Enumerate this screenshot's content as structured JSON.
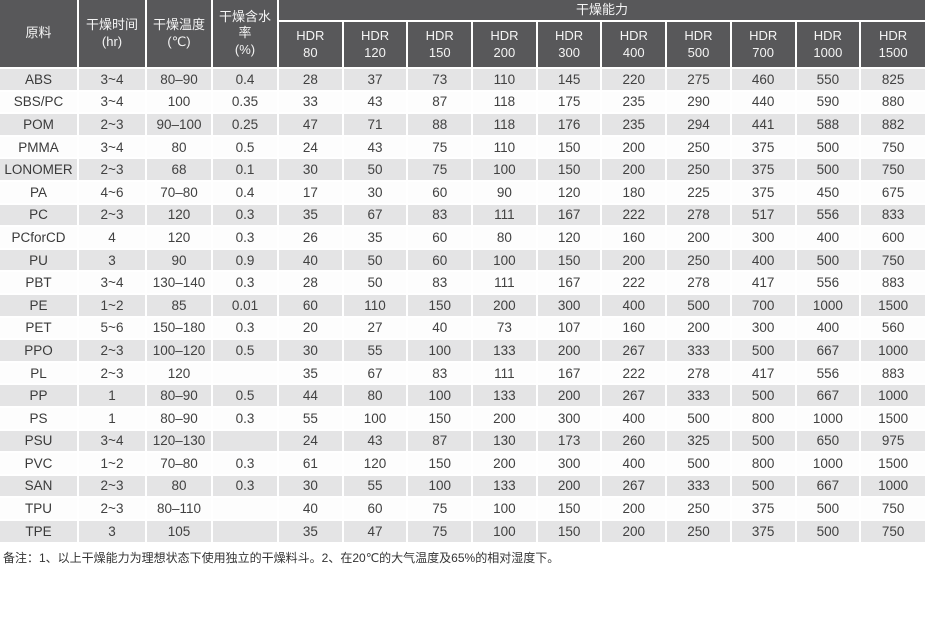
{
  "colors": {
    "header_bg": "#58585a",
    "header_text": "#f4f4f4",
    "material_column_bg": "#c4c4c5",
    "row_odd_bg": "#e4e4e5",
    "row_even_bg": "#fdfdfd",
    "cell_text": "#414141",
    "grid_gap": "#ffffff"
  },
  "table": {
    "headers": {
      "material": "原料",
      "time": "干燥时间\n(hr)",
      "temp": "干燥温度\n(℃)",
      "moisture": "干燥含水率\n(%)",
      "capacity_group": "干燥能力"
    },
    "hdr_columns": [
      "HDR\n80",
      "HDR\n120",
      "HDR\n150",
      "HDR\n200",
      "HDR\n300",
      "HDR\n400",
      "HDR\n500",
      "HDR\n700",
      "HDR\n1000",
      "HDR\n1500"
    ],
    "rows": [
      {
        "material": "ABS",
        "time": "3~4",
        "temp": "80–90",
        "moisture": "0.4",
        "capacities": [
          28,
          37,
          73,
          110,
          145,
          220,
          275,
          460,
          550,
          825
        ]
      },
      {
        "material": "SBS/PC",
        "time": "3~4",
        "temp": "100",
        "moisture": "0.35",
        "capacities": [
          33,
          43,
          87,
          118,
          175,
          235,
          290,
          440,
          590,
          880
        ]
      },
      {
        "material": "POM",
        "time": "2~3",
        "temp": "90–100",
        "moisture": "0.25",
        "capacities": [
          47,
          71,
          88,
          118,
          176,
          235,
          294,
          441,
          588,
          882
        ]
      },
      {
        "material": "PMMA",
        "time": "3~4",
        "temp": "80",
        "moisture": "0.5",
        "capacities": [
          24,
          43,
          75,
          110,
          150,
          200,
          250,
          375,
          500,
          750
        ]
      },
      {
        "material": "LONOMER",
        "time": "2~3",
        "temp": "68",
        "moisture": "0.1",
        "capacities": [
          30,
          50,
          75,
          100,
          150,
          200,
          250,
          375,
          500,
          750
        ]
      },
      {
        "material": "PA",
        "time": "4~6",
        "temp": "70–80",
        "moisture": "0.4",
        "capacities": [
          17,
          30,
          60,
          90,
          120,
          180,
          225,
          375,
          450,
          675
        ]
      },
      {
        "material": "PC",
        "time": "2~3",
        "temp": "120",
        "moisture": "0.3",
        "capacities": [
          35,
          67,
          83,
          111,
          167,
          222,
          278,
          517,
          556,
          833
        ]
      },
      {
        "material": "PCforCD",
        "time": "4",
        "temp": "120",
        "moisture": "0.3",
        "capacities": [
          26,
          35,
          60,
          80,
          120,
          160,
          200,
          300,
          400,
          600
        ]
      },
      {
        "material": "PU",
        "time": "3",
        "temp": "90",
        "moisture": "0.9",
        "capacities": [
          40,
          50,
          60,
          100,
          150,
          200,
          250,
          400,
          500,
          750
        ]
      },
      {
        "material": "PBT",
        "time": "3~4",
        "temp": "130–140",
        "moisture": "0.3",
        "capacities": [
          28,
          50,
          83,
          111,
          167,
          222,
          278,
          417,
          556,
          883
        ]
      },
      {
        "material": "PE",
        "time": "1~2",
        "temp": "85",
        "moisture": "0.01",
        "capacities": [
          60,
          110,
          150,
          200,
          300,
          400,
          500,
          700,
          1000,
          1500
        ]
      },
      {
        "material": "PET",
        "time": "5~6",
        "temp": "150–180",
        "moisture": "0.3",
        "capacities": [
          20,
          27,
          40,
          73,
          107,
          160,
          200,
          300,
          400,
          560
        ]
      },
      {
        "material": "PPO",
        "time": "2~3",
        "temp": "100–120",
        "moisture": "0.5",
        "capacities": [
          30,
          55,
          100,
          133,
          200,
          267,
          333,
          500,
          667,
          1000
        ]
      },
      {
        "material": "PL",
        "time": "2~3",
        "temp": "120",
        "moisture": "",
        "capacities": [
          35,
          67,
          83,
          111,
          167,
          222,
          278,
          417,
          556,
          883
        ]
      },
      {
        "material": "PP",
        "time": "1",
        "temp": "80–90",
        "moisture": "0.5",
        "capacities": [
          44,
          80,
          100,
          133,
          200,
          267,
          333,
          500,
          667,
          1000
        ]
      },
      {
        "material": "PS",
        "time": "1",
        "temp": "80–90",
        "moisture": "0.3",
        "capacities": [
          55,
          100,
          150,
          200,
          300,
          400,
          500,
          800,
          1000,
          1500
        ]
      },
      {
        "material": "PSU",
        "time": "3~4",
        "temp": "120–130",
        "moisture": "",
        "capacities": [
          24,
          43,
          87,
          130,
          173,
          260,
          325,
          500,
          650,
          975
        ]
      },
      {
        "material": "PVC",
        "time": "1~2",
        "temp": "70–80",
        "moisture": "0.3",
        "capacities": [
          61,
          120,
          150,
          200,
          300,
          400,
          500,
          800,
          1000,
          1500
        ]
      },
      {
        "material": "SAN",
        "time": "2~3",
        "temp": "80",
        "moisture": "0.3",
        "capacities": [
          30,
          55,
          100,
          133,
          200,
          267,
          333,
          500,
          667,
          1000
        ]
      },
      {
        "material": "TPU",
        "time": "2~3",
        "temp": "80–110",
        "moisture": "",
        "capacities": [
          40,
          60,
          75,
          100,
          150,
          200,
          250,
          375,
          500,
          750
        ]
      },
      {
        "material": "TPE",
        "time": "3",
        "temp": "105",
        "moisture": "",
        "capacities": [
          35,
          47,
          75,
          100,
          150,
          200,
          250,
          375,
          500,
          750
        ]
      }
    ]
  },
  "footnote": "备注：1、以上干燥能力为理想状态下使用独立的干燥料斗。2、在20℃的大气温度及65%的相对湿度下。"
}
